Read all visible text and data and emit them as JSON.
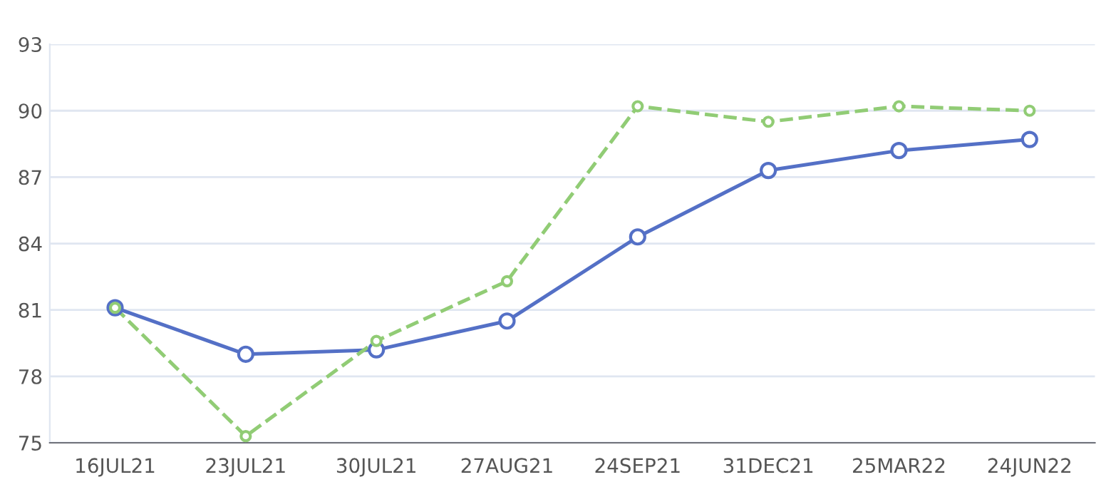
{
  "chart_data": {
    "type": "line",
    "categories": [
      "16JUL21",
      "23JUL21",
      "30JUL21",
      "27AUG21",
      "24SEP21",
      "31DEC21",
      "25MAR22",
      "24JUN22"
    ],
    "series": [
      {
        "color": "#5470c6",
        "line_style": "solid",
        "values": [
          81.1,
          79.0,
          79.2,
          80.5,
          84.3,
          87.3,
          88.2,
          88.7
        ]
      },
      {
        "color": "#91cc75",
        "line_style": "dashed",
        "values": [
          81.1,
          75.3,
          79.6,
          82.3,
          90.2,
          89.5,
          90.2,
          90.0
        ]
      }
    ],
    "ylim": [
      75,
      93
    ],
    "yticks": [
      75,
      78,
      81,
      84,
      87,
      90,
      93
    ],
    "grid": "y",
    "marker": "circle",
    "legend": false
  }
}
